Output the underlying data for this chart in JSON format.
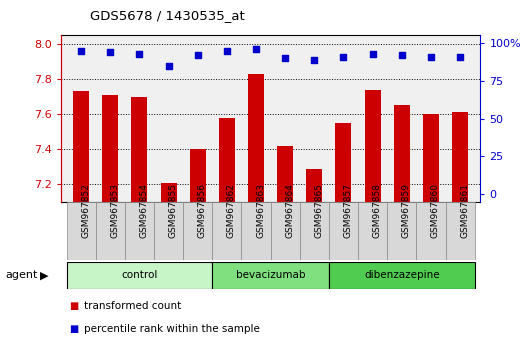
{
  "title": "GDS5678 / 1430535_at",
  "samples": [
    "GSM967852",
    "GSM967853",
    "GSM967854",
    "GSM967855",
    "GSM967856",
    "GSM967862",
    "GSM967863",
    "GSM967864",
    "GSM967865",
    "GSM967857",
    "GSM967858",
    "GSM967859",
    "GSM967860",
    "GSM967861"
  ],
  "transformed_counts": [
    7.73,
    7.71,
    7.7,
    7.21,
    7.4,
    7.58,
    7.83,
    7.42,
    7.29,
    7.55,
    7.74,
    7.65,
    7.6,
    7.61
  ],
  "percentile_ranks": [
    95,
    94,
    93,
    85,
    92,
    95,
    96,
    90,
    89,
    91,
    93,
    92,
    91,
    91
  ],
  "groups": [
    {
      "label": "control",
      "start": 0,
      "end": 5,
      "color": "#c8f5c8"
    },
    {
      "label": "bevacizumab",
      "start": 5,
      "end": 9,
      "color": "#80e080"
    },
    {
      "label": "dibenzazepine",
      "start": 9,
      "end": 14,
      "color": "#50cc50"
    }
  ],
  "bar_color": "#cc0000",
  "dot_color": "#0000cc",
  "ylim_left": [
    7.1,
    8.05
  ],
  "ylim_right": [
    -5,
    105
  ],
  "yticks_left": [
    7.2,
    7.4,
    7.6,
    7.8,
    8.0
  ],
  "yticks_right": [
    0,
    25,
    50,
    75,
    100
  ],
  "right_tick_labels": [
    "0",
    "25",
    "50",
    "75",
    "100%"
  ],
  "background_color": "#f0f0f0",
  "legend_items": [
    {
      "label": "transformed count",
      "color": "#cc0000",
      "marker": "s"
    },
    {
      "label": "percentile rank within the sample",
      "color": "#0000cc",
      "marker": "s"
    }
  ],
  "agent_label": "agent",
  "bar_width": 0.55,
  "figsize": [
    5.28,
    3.54
  ],
  "dpi": 100
}
